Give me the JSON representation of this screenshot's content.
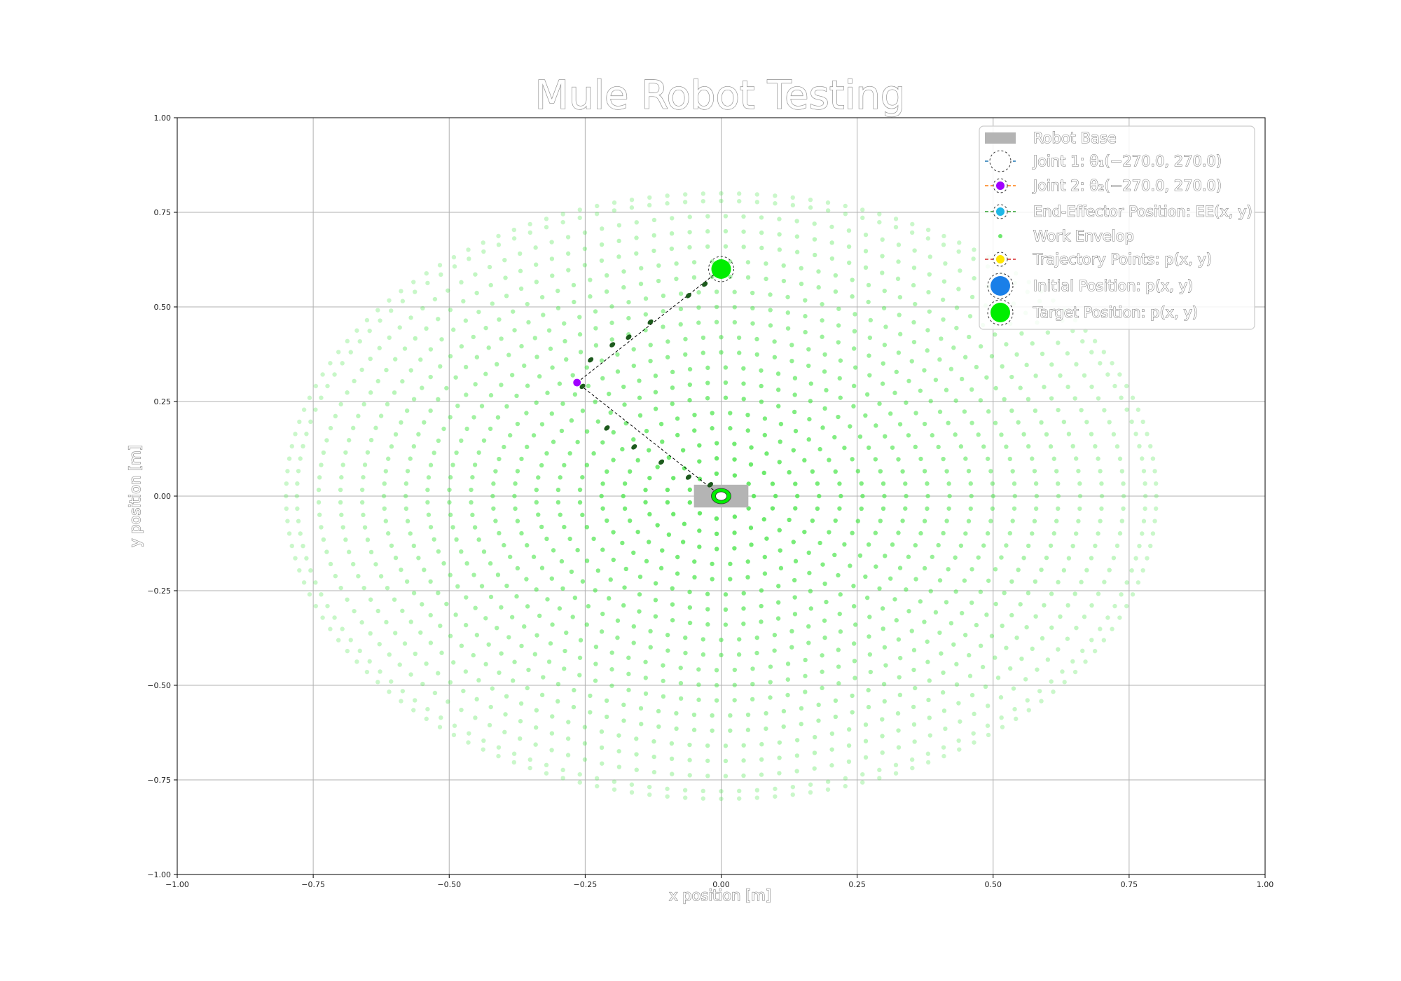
{
  "chart_data": {
    "type": "scatter",
    "title": "Mule Robot Testing",
    "xlabel": "x position [m]",
    "ylabel": "y position [m]",
    "xlim": [
      -1.0,
      1.0
    ],
    "ylim": [
      -1.0,
      1.0
    ],
    "xticks": [
      "−1.00",
      "−0.75",
      "−0.50",
      "−0.25",
      "0.00",
      "0.25",
      "0.50",
      "0.75",
      "1.00"
    ],
    "yticks": [
      "−1.00",
      "−0.75",
      "−0.50",
      "−0.25",
      "0.00",
      "0.25",
      "0.50",
      "0.75",
      "1.00"
    ],
    "xtick_values": [
      -1.0,
      -0.75,
      -0.5,
      -0.25,
      0.0,
      0.25,
      0.5,
      0.75,
      1.0
    ],
    "ytick_values": [
      -1.0,
      -0.75,
      -0.5,
      -0.25,
      0.0,
      0.25,
      0.5,
      0.75,
      1.0
    ],
    "grid": true,
    "legend_position": "top-right",
    "legend": [
      {
        "label": "Robot Base",
        "marker": "rect",
        "color": "#b4b4b4"
      },
      {
        "label": "Joint 1: θ₁(−270.0, 270.0)",
        "marker": "circle",
        "color": "#ffffff",
        "line_color": "#1f77b4"
      },
      {
        "label": "Joint 2: θ₂(−270.0, 270.0)",
        "marker": "circle",
        "color": "#a100ff",
        "line_color": "#ff7f0e"
      },
      {
        "label": "End-Effector Position: EE(x, y)",
        "marker": "circle",
        "color": "#1fb7e6",
        "line_color": "#2ca02c"
      },
      {
        "label": "Work Envelop",
        "marker": "dot",
        "color": "#6ee86e"
      },
      {
        "label": "Trajectory Points: p(x, y)",
        "marker": "circle",
        "color": "#ffe600",
        "line_color": "#d62728"
      },
      {
        "label": "Initial Position: p(x, y)",
        "marker": "big-circle",
        "color": "#1a7fe8"
      },
      {
        "label": "Target Position: p(x, y)",
        "marker": "big-circle",
        "color": "#00ee00"
      }
    ],
    "robot_base": {
      "x": 0.0,
      "y": 0.0,
      "width": 0.1,
      "height": 0.06
    },
    "joint1": {
      "x": 0.0,
      "y": 0.0
    },
    "joint2": {
      "x": -0.265,
      "y": 0.3
    },
    "end_effector": {
      "x": 0.0,
      "y": 0.6
    },
    "target_position": {
      "x": 0.0,
      "y": 0.6
    },
    "work_envelope": {
      "link1_length": 0.4,
      "link2_length": 0.4,
      "ring_radii": [
        0.02,
        0.06,
        0.1,
        0.14,
        0.18,
        0.22,
        0.26,
        0.3,
        0.34,
        0.38,
        0.42,
        0.46,
        0.5,
        0.54,
        0.58,
        0.62,
        0.66,
        0.7,
        0.74,
        0.78,
        0.8
      ],
      "color": "#4ee64e"
    },
    "trajectory": {
      "points": [
        {
          "x": -0.02,
          "y": 0.03
        },
        {
          "x": -0.06,
          "y": 0.05
        },
        {
          "x": -0.11,
          "y": 0.09
        },
        {
          "x": -0.16,
          "y": 0.13
        },
        {
          "x": -0.21,
          "y": 0.18
        },
        {
          "x": -0.255,
          "y": 0.29
        },
        {
          "x": -0.24,
          "y": 0.36
        },
        {
          "x": -0.2,
          "y": 0.4
        },
        {
          "x": -0.17,
          "y": 0.42
        },
        {
          "x": -0.13,
          "y": 0.46
        },
        {
          "x": -0.06,
          "y": 0.53
        },
        {
          "x": -0.03,
          "y": 0.56
        }
      ],
      "color": "#1c5a1c"
    }
  }
}
